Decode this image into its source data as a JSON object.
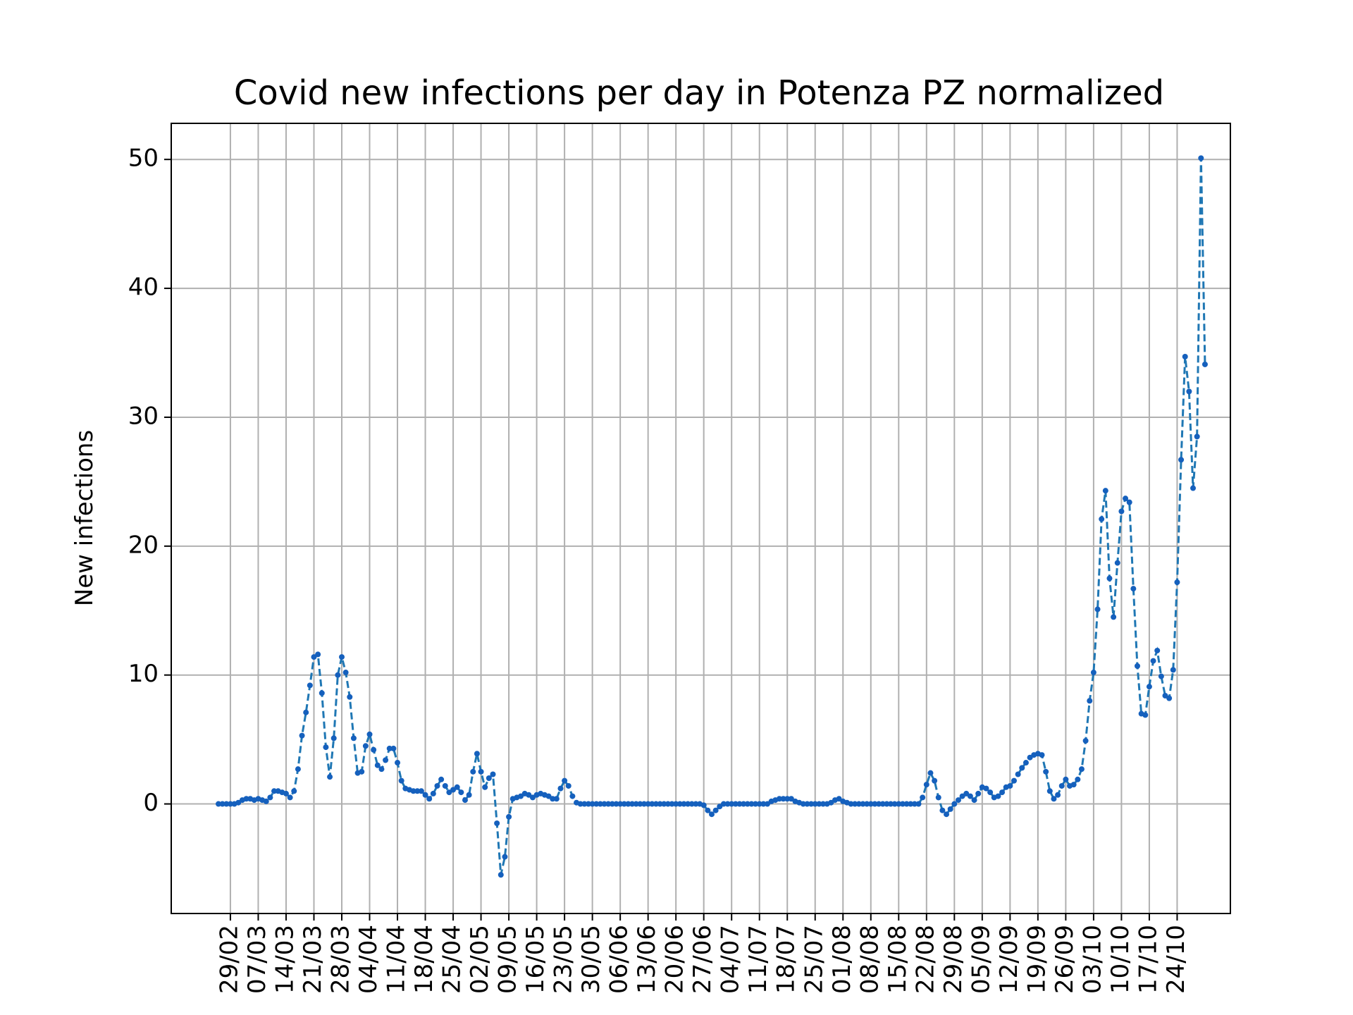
{
  "chart_data": {
    "type": "line",
    "title": "Covid new infections per day in Potenza PZ normalized",
    "xlabel": "",
    "ylabel": "New infections",
    "ylim": [
      -8.5,
      52.8
    ],
    "grid": true,
    "legend": "none",
    "line_color": "#1f77b4",
    "marker_color": "#1560bd",
    "line_style": "dashed",
    "x_start_date": "2020-02-26",
    "x_end_date": "2020-10-24",
    "xticks": [
      "29/02",
      "07/03",
      "14/03",
      "21/03",
      "28/03",
      "04/04",
      "11/04",
      "18/04",
      "25/04",
      "02/05",
      "09/05",
      "16/05",
      "23/05",
      "30/05",
      "06/06",
      "13/06",
      "20/06",
      "27/06",
      "04/07",
      "11/07",
      "18/07",
      "25/07",
      "01/08",
      "08/08",
      "15/08",
      "22/08",
      "29/08",
      "05/09",
      "12/09",
      "19/09",
      "26/09",
      "03/10",
      "10/10",
      "17/10",
      "24/10"
    ],
    "yticks": [
      0,
      10,
      20,
      30,
      40,
      50
    ],
    "series": [
      {
        "values": [
          0,
          0,
          0,
          0,
          0,
          0.1,
          0.3,
          0.4,
          0.4,
          0.3,
          0.4,
          0.3,
          0.2,
          0.5,
          1.0,
          1.0,
          0.9,
          0.8,
          0.5,
          1.0,
          2.7,
          5.3,
          7.1,
          9.2,
          11.4,
          11.6,
          8.6,
          4.4,
          2.1,
          5.1,
          10.0,
          11.4,
          10.2,
          8.3,
          5.1,
          2.4,
          2.5,
          4.5,
          5.4,
          4.2,
          3.0,
          2.7,
          3.4,
          4.3,
          4.3,
          3.2,
          1.8,
          1.2,
          1.1,
          1.0,
          1.0,
          1.0,
          0.7,
          0.4,
          0.8,
          1.4,
          1.9,
          1.4,
          0.9,
          1.1,
          1.3,
          0.9,
          0.3,
          0.7,
          2.5,
          3.9,
          2.5,
          1.3,
          2.0,
          2.3,
          -1.5,
          -5.5,
          -4.1,
          -1.0,
          0.4,
          0.5,
          0.6,
          0.8,
          0.7,
          0.5,
          0.7,
          0.8,
          0.7,
          0.6,
          0.4,
          0.4,
          1.2,
          1.8,
          1.4,
          0.6,
          0.1,
          0,
          0,
          0,
          0,
          0,
          0,
          0,
          0,
          0,
          0,
          0,
          0,
          0,
          0,
          0,
          0,
          0,
          0,
          0,
          0,
          0,
          0,
          0,
          0,
          0,
          0,
          0,
          0,
          0,
          0,
          0,
          -0.1,
          -0.5,
          -0.8,
          -0.5,
          -0.2,
          0,
          0,
          0,
          0,
          0,
          0,
          0,
          0,
          0,
          0,
          0,
          0,
          0.2,
          0.3,
          0.4,
          0.4,
          0.4,
          0.4,
          0.2,
          0.1,
          0,
          0,
          0,
          0,
          0,
          0,
          0,
          0.1,
          0.3,
          0.4,
          0.2,
          0.1,
          0,
          0,
          0,
          0,
          0,
          0,
          0,
          0,
          0,
          0,
          0,
          0,
          0,
          0,
          0,
          0,
          0,
          0,
          0.5,
          1.5,
          2.4,
          1.8,
          0.5,
          -0.5,
          -0.8,
          -0.4,
          0,
          0.3,
          0.6,
          0.8,
          0.6,
          0.3,
          0.8,
          1.3,
          1.2,
          0.9,
          0.5,
          0.6,
          0.9,
          1.3,
          1.4,
          1.8,
          2.3,
          2.8,
          3.2,
          3.6,
          3.8,
          3.9,
          3.8,
          2.5,
          1.0,
          0.4,
          0.7,
          1.4,
          1.9,
          1.4,
          1.5,
          1.9,
          2.7,
          4.9,
          8.0,
          10.2,
          15.1,
          22.1,
          24.3,
          17.5,
          14.5,
          18.7,
          22.7,
          23.7,
          23.4,
          16.7,
          10.7,
          7.0,
          6.9,
          9.1,
          11.1,
          11.9,
          9.9,
          8.4,
          8.2,
          10.4,
          17.2,
          26.7,
          34.7,
          32.0,
          24.5,
          28.5,
          50.1,
          34.1
        ]
      }
    ]
  }
}
